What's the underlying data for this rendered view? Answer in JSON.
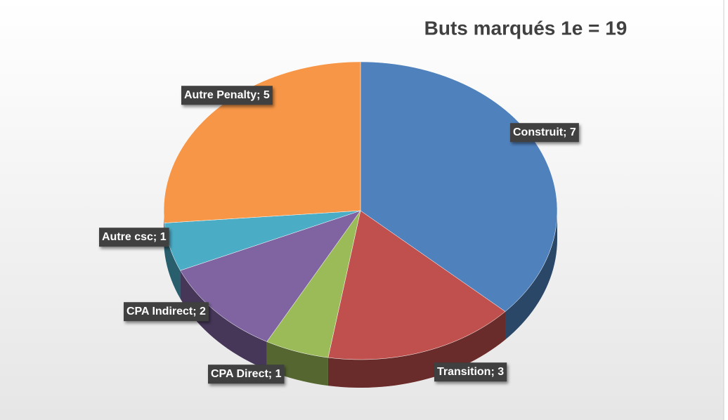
{
  "chart_data": {
    "type": "pie3d",
    "title": "Buts marqués 1e = 19",
    "values": [
      7,
      3,
      1,
      2,
      1,
      5
    ],
    "value_labels": [
      "Construit; 7",
      "Transition; 3",
      "CPA Direct; 1",
      "CPA Indirect; 2",
      "Autre csc; 1",
      "Autre Penalty; 5"
    ],
    "colors": [
      "#4f81bd",
      "#c0504d",
      "#9bbb59",
      "#8064a2",
      "#4bacc6",
      "#f79646"
    ]
  }
}
